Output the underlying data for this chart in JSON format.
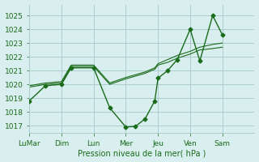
{
  "bg_color": "#d9eeee",
  "grid_color": "#aacccc",
  "line_color": "#1a6b1a",
  "marker_color": "#1a6b1a",
  "xlabel": "Pression niveau de la mer( hPa )",
  "xlabel_color": "#1a6b1a",
  "tick_color": "#1a6b1a",
  "xlim": [
    0,
    7
  ],
  "ylim": [
    1016.5,
    1025.8
  ],
  "yticks": [
    1017,
    1018,
    1019,
    1020,
    1021,
    1022,
    1023,
    1024,
    1025
  ],
  "xtick_labels": [
    "LuMar",
    "Dim",
    "Lun",
    "Mer",
    "Jeu",
    "Ven",
    "Sam"
  ],
  "xtick_positions": [
    0,
    1,
    2,
    3,
    4,
    5,
    6
  ],
  "series1_x": [
    0,
    0.5,
    1.0,
    1.3,
    2.0,
    2.5,
    3.0,
    3.3,
    3.6,
    3.9,
    4.0,
    4.3,
    4.6,
    5.0,
    5.3,
    5.7,
    6.0
  ],
  "series1_y": [
    1018.8,
    1019.9,
    1020.0,
    1021.2,
    1021.2,
    1018.3,
    1016.9,
    1016.95,
    1017.5,
    1018.8,
    1020.45,
    1021.0,
    1021.8,
    1024.0,
    1021.7,
    1025.0,
    1023.6
  ],
  "series2_x": [
    0,
    0.5,
    1.0,
    1.3,
    2.0,
    2.5,
    3.0,
    3.3,
    3.6,
    3.9,
    4.0,
    4.3,
    4.6,
    5.0,
    5.3,
    5.7,
    6.0
  ],
  "series2_y": [
    1019.8,
    1020.0,
    1020.1,
    1021.3,
    1021.3,
    1020.0,
    1020.4,
    1020.6,
    1020.8,
    1021.1,
    1021.4,
    1021.6,
    1021.9,
    1022.2,
    1022.5,
    1022.6,
    1022.7
  ],
  "series3_x": [
    0,
    0.5,
    1.0,
    1.3,
    2.0,
    2.5,
    3.0,
    3.3,
    3.6,
    3.9,
    4.0,
    4.3,
    4.6,
    5.0,
    5.3,
    5.7,
    6.0
  ],
  "series3_y": [
    1019.9,
    1020.1,
    1020.2,
    1021.4,
    1021.4,
    1020.1,
    1020.5,
    1020.7,
    1020.9,
    1021.2,
    1021.5,
    1021.8,
    1022.1,
    1022.4,
    1022.7,
    1022.9,
    1023.0
  ]
}
